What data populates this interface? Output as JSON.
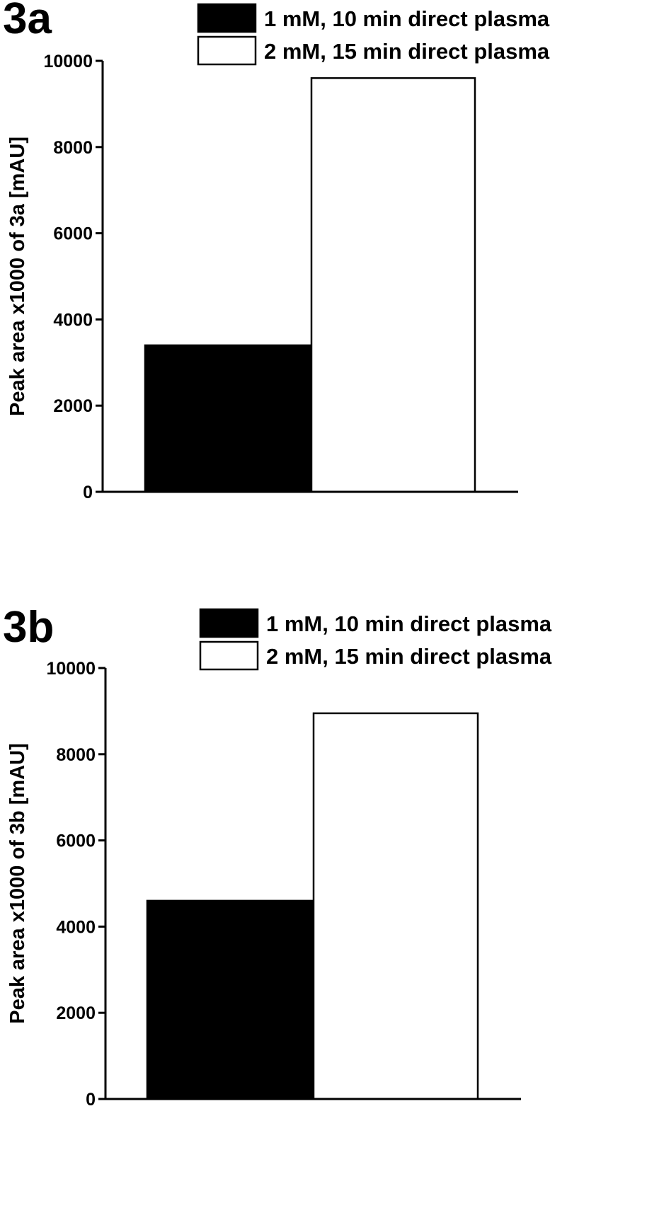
{
  "chart_data": [
    {
      "type": "bar",
      "panel_label": "3a",
      "ylabel": "Peak area x1000 of 3a [mAU]",
      "ylim": [
        0,
        10000
      ],
      "yticks": [
        "0",
        "2000",
        "4000",
        "6000",
        "8000",
        "10000"
      ],
      "grid": false,
      "legend_position": "top-right",
      "series": [
        {
          "name": "1 mM, 10 min direct plasma",
          "color": "#000000",
          "values": [
            3400
          ]
        },
        {
          "name": "2 mM, 15 min direct plasma",
          "color": "#ffffff",
          "values": [
            9600
          ]
        }
      ]
    },
    {
      "type": "bar",
      "panel_label": "3b",
      "ylabel": "Peak area x1000 of 3b [mAU]",
      "ylim": [
        0,
        10000
      ],
      "yticks": [
        "0",
        "2000",
        "4000",
        "6000",
        "8000",
        "10000"
      ],
      "grid": false,
      "legend_position": "top-right",
      "series": [
        {
          "name": "1 mM, 10 min direct plasma",
          "color": "#000000",
          "values": [
            4600
          ]
        },
        {
          "name": "2 mM, 15 min direct plasma",
          "color": "#ffffff",
          "values": [
            8950
          ]
        }
      ]
    }
  ]
}
